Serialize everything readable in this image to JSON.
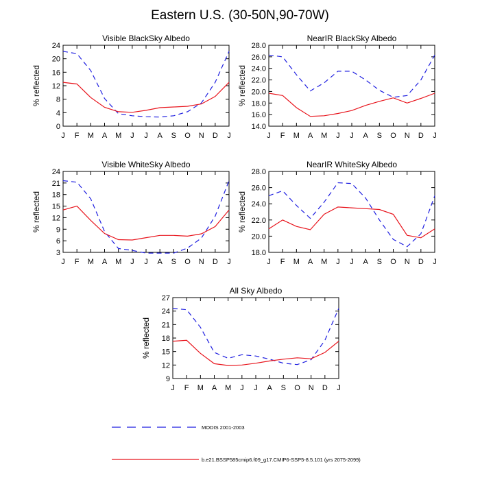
{
  "title": "Eastern U.S. (30-50N,90-70W)",
  "legend": {
    "position": "bottom",
    "entries": [
      {
        "label": "MODIS 2001-2003",
        "color": "#1f1fe0",
        "style": "dashed"
      },
      {
        "label": "b.e21.BSSP585cmip6.f09_g17.CMIP6-SSP5-8.5.101 (yrs 2075-2099)",
        "color": "#e8141c",
        "style": "solid"
      }
    ]
  },
  "chart_data": [
    {
      "type": "line",
      "title": "Visible BlackSky Albedo",
      "ylabel": "% reflected",
      "xlabel": "",
      "categories": [
        "J",
        "F",
        "M",
        "A",
        "M",
        "J",
        "J",
        "A",
        "S",
        "O",
        "N",
        "D",
        "J"
      ],
      "ylim": [
        0,
        24
      ],
      "yticks": [
        "0",
        "4",
        "8",
        "12",
        "16",
        "20",
        "24"
      ],
      "grid": false,
      "series": [
        {
          "name": "MODIS 2001-2003",
          "values": [
            22.2,
            21.5,
            16.5,
            8.2,
            3.7,
            3.1,
            2.8,
            2.7,
            3.1,
            4.3,
            6.9,
            13.0,
            22.2
          ]
        },
        {
          "name": "b.e21.BSSP585cmip6.f09_g17.CMIP6-SSP5-8.5.101 (yrs 2075-2099)",
          "values": [
            13.0,
            12.5,
            8.5,
            5.6,
            4.3,
            4.1,
            4.7,
            5.5,
            5.7,
            5.9,
            6.6,
            8.8,
            13.0
          ]
        }
      ]
    },
    {
      "type": "line",
      "title": "NearIR BlackSky Albedo",
      "ylabel": "% reflected",
      "xlabel": "",
      "categories": [
        "J",
        "F",
        "M",
        "A",
        "M",
        "J",
        "J",
        "A",
        "S",
        "O",
        "N",
        "D",
        "J"
      ],
      "ylim": [
        14,
        28
      ],
      "yticks": [
        "14.0",
        "16.0",
        "18.0",
        "20.0",
        "22.0",
        "24.0",
        "26.0",
        "28.0"
      ],
      "grid": false,
      "series": [
        {
          "name": "MODIS 2001-2003",
          "values": [
            26.3,
            26.0,
            22.9,
            20.1,
            21.5,
            23.5,
            23.5,
            22.0,
            20.2,
            19.0,
            19.3,
            22.0,
            26.3
          ]
        },
        {
          "name": "b.e21.BSSP585cmip6.f09_g17.CMIP6-SSP5-8.5.101 (yrs 2075-2099)",
          "values": [
            19.7,
            19.3,
            17.2,
            15.7,
            15.8,
            16.2,
            16.7,
            17.6,
            18.3,
            18.9,
            18.0,
            18.8,
            19.7
          ]
        }
      ]
    },
    {
      "type": "line",
      "title": "Visible WhiteSky Albedo",
      "ylabel": "% reflected",
      "xlabel": "",
      "categories": [
        "J",
        "F",
        "M",
        "A",
        "M",
        "J",
        "J",
        "A",
        "S",
        "O",
        "N",
        "D",
        "J"
      ],
      "ylim": [
        3,
        24
      ],
      "yticks": [
        "3",
        "6",
        "9",
        "12",
        "15",
        "18",
        "21",
        "24"
      ],
      "grid": false,
      "series": [
        {
          "name": "MODIS 2001-2003",
          "values": [
            21.6,
            21.2,
            16.9,
            8.4,
            4.0,
            3.5,
            2.8,
            2.8,
            2.8,
            4.1,
            6.7,
            12.4,
            21.6
          ]
        },
        {
          "name": "b.e21.BSSP585cmip6.f09_g17.CMIP6-SSP5-8.5.101 (yrs 2075-2099)",
          "values": [
            14.0,
            15.0,
            11.3,
            7.9,
            6.3,
            6.2,
            6.8,
            7.4,
            7.4,
            7.2,
            7.8,
            9.7,
            14.0
          ]
        }
      ]
    },
    {
      "type": "line",
      "title": "NearIR WhiteSky Albedo",
      "ylabel": "% reflected",
      "xlabel": "",
      "categories": [
        "J",
        "F",
        "M",
        "A",
        "M",
        "J",
        "J",
        "A",
        "S",
        "O",
        "N",
        "D",
        "J"
      ],
      "ylim": [
        18,
        28
      ],
      "yticks": [
        "18.0",
        "20.0",
        "22.0",
        "24.0",
        "26.0",
        "28.0"
      ],
      "grid": false,
      "series": [
        {
          "name": "MODIS 2001-2003",
          "values": [
            25.0,
            25.6,
            23.8,
            22.2,
            24.2,
            26.6,
            26.5,
            24.7,
            22.0,
            19.6,
            18.7,
            20.3,
            25.0
          ]
        },
        {
          "name": "b.e21.BSSP585cmip6.f09_g17.CMIP6-SSP5-8.5.101 (yrs 2075-2099)",
          "values": [
            20.9,
            22.0,
            21.2,
            20.8,
            22.7,
            23.6,
            23.5,
            23.4,
            23.3,
            22.7,
            20.1,
            19.8,
            20.9
          ]
        }
      ]
    },
    {
      "type": "line",
      "title": "All Sky Albedo",
      "ylabel": "% reflected",
      "xlabel": "",
      "categories": [
        "J",
        "F",
        "M",
        "A",
        "M",
        "J",
        "J",
        "A",
        "S",
        "O",
        "N",
        "D",
        "J"
      ],
      "ylim": [
        9,
        27
      ],
      "yticks": [
        "9",
        "12",
        "15",
        "18",
        "21",
        "24",
        "27"
      ],
      "grid": false,
      "series": [
        {
          "name": "MODIS 2001-2003",
          "values": [
            24.6,
            24.3,
            20.4,
            14.8,
            13.5,
            14.3,
            14.0,
            13.3,
            12.4,
            12.1,
            13.2,
            17.5,
            24.6
          ]
        },
        {
          "name": "b.e21.BSSP585cmip6.f09_g17.CMIP6-SSP5-8.5.101 (yrs 2075-2099)",
          "values": [
            17.3,
            17.5,
            14.6,
            12.3,
            11.9,
            12.0,
            12.4,
            12.9,
            13.3,
            13.6,
            13.4,
            14.8,
            17.3
          ]
        }
      ]
    }
  ]
}
